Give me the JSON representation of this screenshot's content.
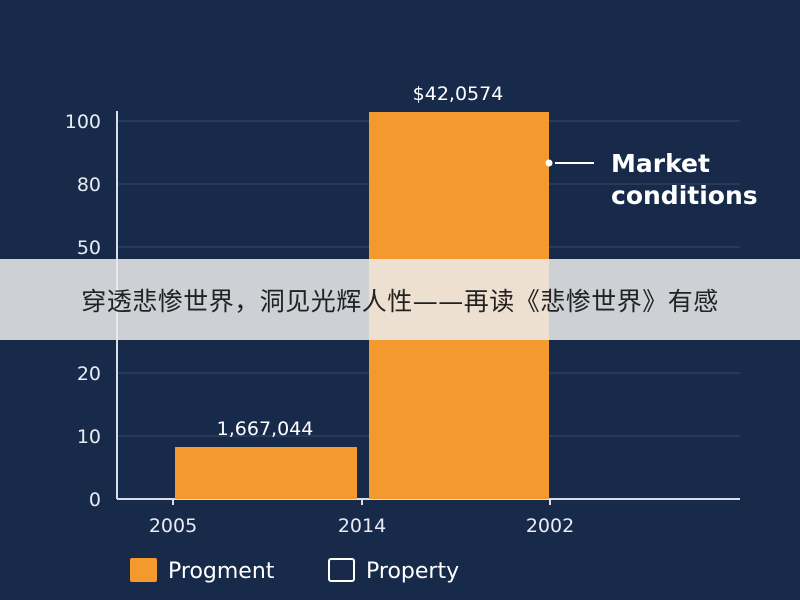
{
  "banner": {
    "text": "穿透悲惨世界，洞见光辉人性——再读《悲惨世界》有感"
  },
  "colors": {
    "background": "#172a4a",
    "bar": "#f39a2e",
    "grid": "#2f4366",
    "axis": "#d8dde6",
    "text": "#ffffff",
    "banner": "#ebebeb"
  },
  "chart_data": {
    "type": "bar",
    "title": "",
    "xlabel": "",
    "ylabel": "",
    "categories": [
      "2005",
      "2014",
      "2002"
    ],
    "y_ticks": [
      "0",
      "10",
      "20",
      "50",
      "80",
      "100"
    ],
    "grid": true,
    "bars": [
      {
        "left_category": "2005",
        "right_category": "2014",
        "value": 10,
        "label": "1,667,044"
      },
      {
        "left_category": "2014",
        "right_category": "2002",
        "value": 100,
        "label": "$42,0574"
      }
    ],
    "annotation": {
      "lines": [
        "Market",
        "conditions"
      ]
    },
    "legend": {
      "placement": "bottom-left",
      "items": [
        {
          "name": "Progment",
          "color": "#f39a2e",
          "filled": true
        },
        {
          "name": "Property",
          "color": "#ffffff",
          "filled": false
        }
      ]
    }
  }
}
